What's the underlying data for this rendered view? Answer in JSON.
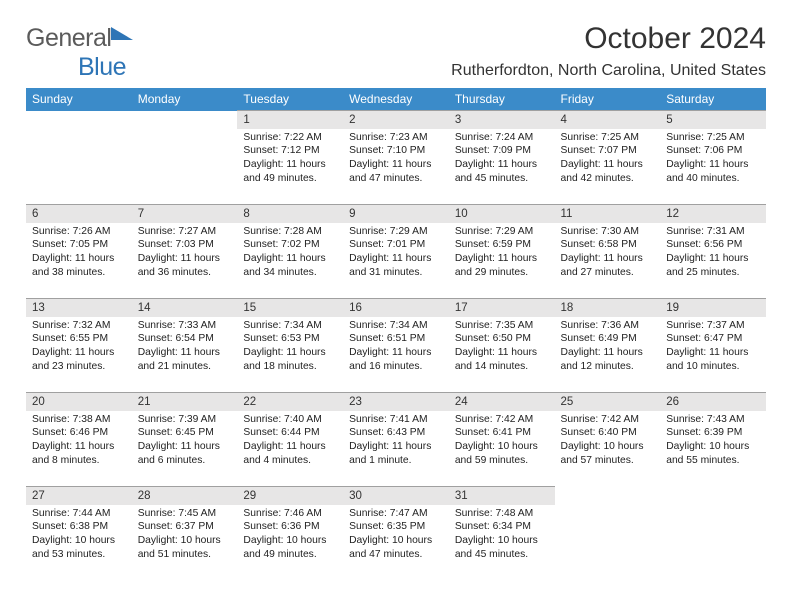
{
  "brand": {
    "general": "General",
    "blue": "Blue"
  },
  "title": "October 2024",
  "location": "Rutherfordton, North Carolina, United States",
  "colors": {
    "header_bg": "#3b8bc9",
    "header_text": "#ffffff",
    "daynum_bg": "#e7e6e6",
    "border": "#a0a0a0"
  },
  "weekdays": [
    "Sunday",
    "Monday",
    "Tuesday",
    "Wednesday",
    "Thursday",
    "Friday",
    "Saturday"
  ],
  "weeks": [
    [
      null,
      null,
      {
        "n": "1",
        "sunrise": "Sunrise: 7:22 AM",
        "sunset": "Sunset: 7:12 PM",
        "day1": "Daylight: 11 hours",
        "day2": "and 49 minutes."
      },
      {
        "n": "2",
        "sunrise": "Sunrise: 7:23 AM",
        "sunset": "Sunset: 7:10 PM",
        "day1": "Daylight: 11 hours",
        "day2": "and 47 minutes."
      },
      {
        "n": "3",
        "sunrise": "Sunrise: 7:24 AM",
        "sunset": "Sunset: 7:09 PM",
        "day1": "Daylight: 11 hours",
        "day2": "and 45 minutes."
      },
      {
        "n": "4",
        "sunrise": "Sunrise: 7:25 AM",
        "sunset": "Sunset: 7:07 PM",
        "day1": "Daylight: 11 hours",
        "day2": "and 42 minutes."
      },
      {
        "n": "5",
        "sunrise": "Sunrise: 7:25 AM",
        "sunset": "Sunset: 7:06 PM",
        "day1": "Daylight: 11 hours",
        "day2": "and 40 minutes."
      }
    ],
    [
      {
        "n": "6",
        "sunrise": "Sunrise: 7:26 AM",
        "sunset": "Sunset: 7:05 PM",
        "day1": "Daylight: 11 hours",
        "day2": "and 38 minutes."
      },
      {
        "n": "7",
        "sunrise": "Sunrise: 7:27 AM",
        "sunset": "Sunset: 7:03 PM",
        "day1": "Daylight: 11 hours",
        "day2": "and 36 minutes."
      },
      {
        "n": "8",
        "sunrise": "Sunrise: 7:28 AM",
        "sunset": "Sunset: 7:02 PM",
        "day1": "Daylight: 11 hours",
        "day2": "and 34 minutes."
      },
      {
        "n": "9",
        "sunrise": "Sunrise: 7:29 AM",
        "sunset": "Sunset: 7:01 PM",
        "day1": "Daylight: 11 hours",
        "day2": "and 31 minutes."
      },
      {
        "n": "10",
        "sunrise": "Sunrise: 7:29 AM",
        "sunset": "Sunset: 6:59 PM",
        "day1": "Daylight: 11 hours",
        "day2": "and 29 minutes."
      },
      {
        "n": "11",
        "sunrise": "Sunrise: 7:30 AM",
        "sunset": "Sunset: 6:58 PM",
        "day1": "Daylight: 11 hours",
        "day2": "and 27 minutes."
      },
      {
        "n": "12",
        "sunrise": "Sunrise: 7:31 AM",
        "sunset": "Sunset: 6:56 PM",
        "day1": "Daylight: 11 hours",
        "day2": "and 25 minutes."
      }
    ],
    [
      {
        "n": "13",
        "sunrise": "Sunrise: 7:32 AM",
        "sunset": "Sunset: 6:55 PM",
        "day1": "Daylight: 11 hours",
        "day2": "and 23 minutes."
      },
      {
        "n": "14",
        "sunrise": "Sunrise: 7:33 AM",
        "sunset": "Sunset: 6:54 PM",
        "day1": "Daylight: 11 hours",
        "day2": "and 21 minutes."
      },
      {
        "n": "15",
        "sunrise": "Sunrise: 7:34 AM",
        "sunset": "Sunset: 6:53 PM",
        "day1": "Daylight: 11 hours",
        "day2": "and 18 minutes."
      },
      {
        "n": "16",
        "sunrise": "Sunrise: 7:34 AM",
        "sunset": "Sunset: 6:51 PM",
        "day1": "Daylight: 11 hours",
        "day2": "and 16 minutes."
      },
      {
        "n": "17",
        "sunrise": "Sunrise: 7:35 AM",
        "sunset": "Sunset: 6:50 PM",
        "day1": "Daylight: 11 hours",
        "day2": "and 14 minutes."
      },
      {
        "n": "18",
        "sunrise": "Sunrise: 7:36 AM",
        "sunset": "Sunset: 6:49 PM",
        "day1": "Daylight: 11 hours",
        "day2": "and 12 minutes."
      },
      {
        "n": "19",
        "sunrise": "Sunrise: 7:37 AM",
        "sunset": "Sunset: 6:47 PM",
        "day1": "Daylight: 11 hours",
        "day2": "and 10 minutes."
      }
    ],
    [
      {
        "n": "20",
        "sunrise": "Sunrise: 7:38 AM",
        "sunset": "Sunset: 6:46 PM",
        "day1": "Daylight: 11 hours",
        "day2": "and 8 minutes."
      },
      {
        "n": "21",
        "sunrise": "Sunrise: 7:39 AM",
        "sunset": "Sunset: 6:45 PM",
        "day1": "Daylight: 11 hours",
        "day2": "and 6 minutes."
      },
      {
        "n": "22",
        "sunrise": "Sunrise: 7:40 AM",
        "sunset": "Sunset: 6:44 PM",
        "day1": "Daylight: 11 hours",
        "day2": "and 4 minutes."
      },
      {
        "n": "23",
        "sunrise": "Sunrise: 7:41 AM",
        "sunset": "Sunset: 6:43 PM",
        "day1": "Daylight: 11 hours",
        "day2": "and 1 minute."
      },
      {
        "n": "24",
        "sunrise": "Sunrise: 7:42 AM",
        "sunset": "Sunset: 6:41 PM",
        "day1": "Daylight: 10 hours",
        "day2": "and 59 minutes."
      },
      {
        "n": "25",
        "sunrise": "Sunrise: 7:42 AM",
        "sunset": "Sunset: 6:40 PM",
        "day1": "Daylight: 10 hours",
        "day2": "and 57 minutes."
      },
      {
        "n": "26",
        "sunrise": "Sunrise: 7:43 AM",
        "sunset": "Sunset: 6:39 PM",
        "day1": "Daylight: 10 hours",
        "day2": "and 55 minutes."
      }
    ],
    [
      {
        "n": "27",
        "sunrise": "Sunrise: 7:44 AM",
        "sunset": "Sunset: 6:38 PM",
        "day1": "Daylight: 10 hours",
        "day2": "and 53 minutes."
      },
      {
        "n": "28",
        "sunrise": "Sunrise: 7:45 AM",
        "sunset": "Sunset: 6:37 PM",
        "day1": "Daylight: 10 hours",
        "day2": "and 51 minutes."
      },
      {
        "n": "29",
        "sunrise": "Sunrise: 7:46 AM",
        "sunset": "Sunset: 6:36 PM",
        "day1": "Daylight: 10 hours",
        "day2": "and 49 minutes."
      },
      {
        "n": "30",
        "sunrise": "Sunrise: 7:47 AM",
        "sunset": "Sunset: 6:35 PM",
        "day1": "Daylight: 10 hours",
        "day2": "and 47 minutes."
      },
      {
        "n": "31",
        "sunrise": "Sunrise: 7:48 AM",
        "sunset": "Sunset: 6:34 PM",
        "day1": "Daylight: 10 hours",
        "day2": "and 45 minutes."
      },
      null,
      null
    ]
  ]
}
